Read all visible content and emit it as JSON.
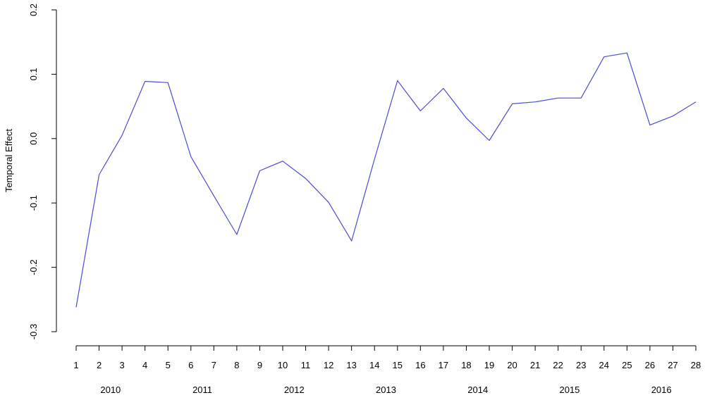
{
  "chart_data": {
    "type": "line",
    "title": "",
    "xlabel": "",
    "ylabel": "Temporal Effect",
    "x": [
      1,
      2,
      3,
      4,
      5,
      6,
      7,
      8,
      9,
      10,
      11,
      12,
      13,
      14,
      15,
      16,
      17,
      18,
      19,
      20,
      21,
      22,
      23,
      24,
      25,
      26,
      27,
      28
    ],
    "x_tick_labels": [
      "1",
      "2",
      "3",
      "4",
      "5",
      "6",
      "7",
      "8",
      "9",
      "10",
      "11",
      "12",
      "13",
      "14",
      "15",
      "16",
      "17",
      "18",
      "19",
      "20",
      "21",
      "22",
      "23",
      "24",
      "25",
      "26",
      "27",
      "28"
    ],
    "year_labels": [
      {
        "label": "2010",
        "x": 2.5
      },
      {
        "label": "2011",
        "x": 6.5
      },
      {
        "label": "2012",
        "x": 10.5
      },
      {
        "label": "2013",
        "x": 14.5
      },
      {
        "label": "2014",
        "x": 18.5
      },
      {
        "label": "2015",
        "x": 22.5
      },
      {
        "label": "2016",
        "x": 26.5
      }
    ],
    "series": [
      {
        "color": "#4a4ad8",
        "values": [
          -0.262,
          -0.056,
          0.005,
          0.089,
          0.087,
          -0.028,
          -0.089,
          -0.149,
          -0.05,
          -0.035,
          -0.062,
          -0.099,
          -0.159,
          -0.032,
          0.09,
          0.043,
          0.078,
          0.032,
          -0.003,
          0.054,
          0.057,
          0.063,
          0.063,
          0.127,
          0.133,
          0.021,
          0.035,
          0.057
        ]
      }
    ],
    "y_ticks": [
      -0.3,
      -0.2,
      -0.1,
      0.0,
      0.1,
      0.2
    ],
    "y_tick_labels": [
      "-0.3",
      "-0.2",
      "-0.1",
      "0.0",
      "0.1",
      "0.2"
    ],
    "xlim": [
      1,
      28
    ],
    "ylim": [
      -0.3,
      0.2
    ],
    "grid": false,
    "legend": "none"
  }
}
